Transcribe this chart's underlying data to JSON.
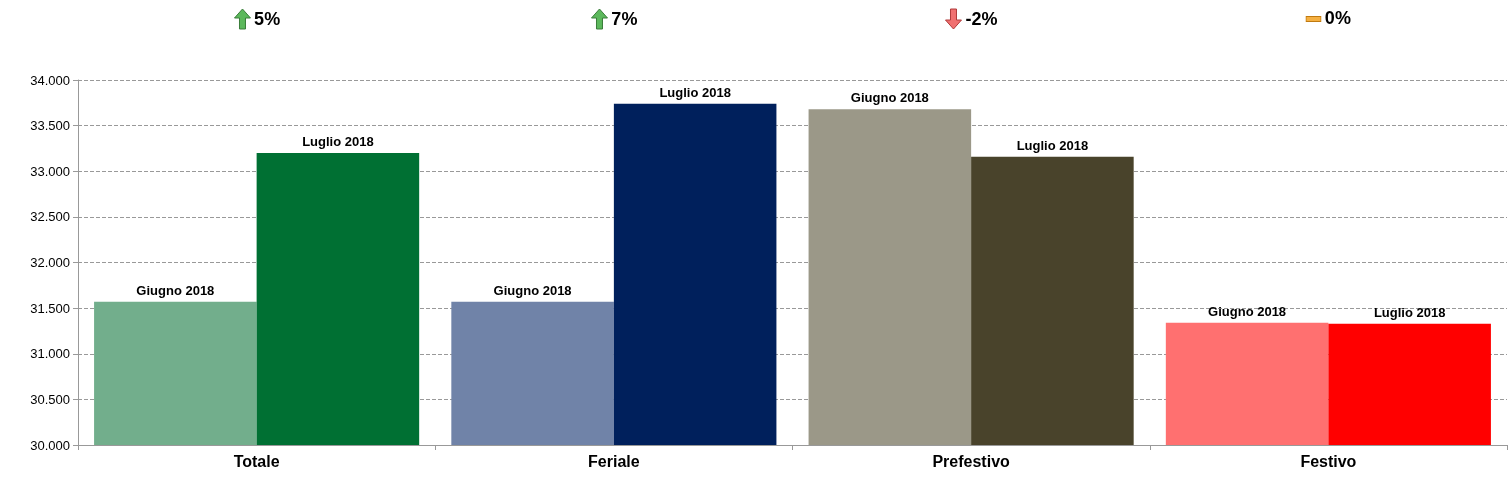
{
  "chart_data": {
    "type": "bar",
    "categories": [
      "Totale",
      "Feriale",
      "Prefestivo",
      "Festivo"
    ],
    "series": [
      {
        "name": "Giugno 2018",
        "colors": [
          "#72ae8c",
          "#7083a8",
          "#9b9888",
          "#ff7070"
        ],
        "values": [
          31570,
          31570,
          33680,
          31340
        ]
      },
      {
        "name": "Luglio 2018",
        "colors": [
          "#007033",
          "#00205c",
          "#49432b",
          "#ff0000"
        ],
        "values": [
          33200,
          33740,
          33160,
          31330
        ]
      }
    ],
    "ylim": [
      30000,
      34000
    ],
    "yticks": [
      {
        "value": 30000,
        "label": "30.000"
      },
      {
        "value": 30500,
        "label": "30.500"
      },
      {
        "value": 31000,
        "label": "31.000"
      },
      {
        "value": 31500,
        "label": "31.500"
      },
      {
        "value": 32000,
        "label": "32.000"
      },
      {
        "value": 32500,
        "label": "32.500"
      },
      {
        "value": 33000,
        "label": "33.000"
      },
      {
        "value": 33500,
        "label": "33.500"
      },
      {
        "value": 34000,
        "label": "34.000"
      }
    ],
    "grid": "y",
    "legend": false,
    "annotations": [
      "5%",
      "7%",
      "-2%",
      "0%"
    ]
  }
}
